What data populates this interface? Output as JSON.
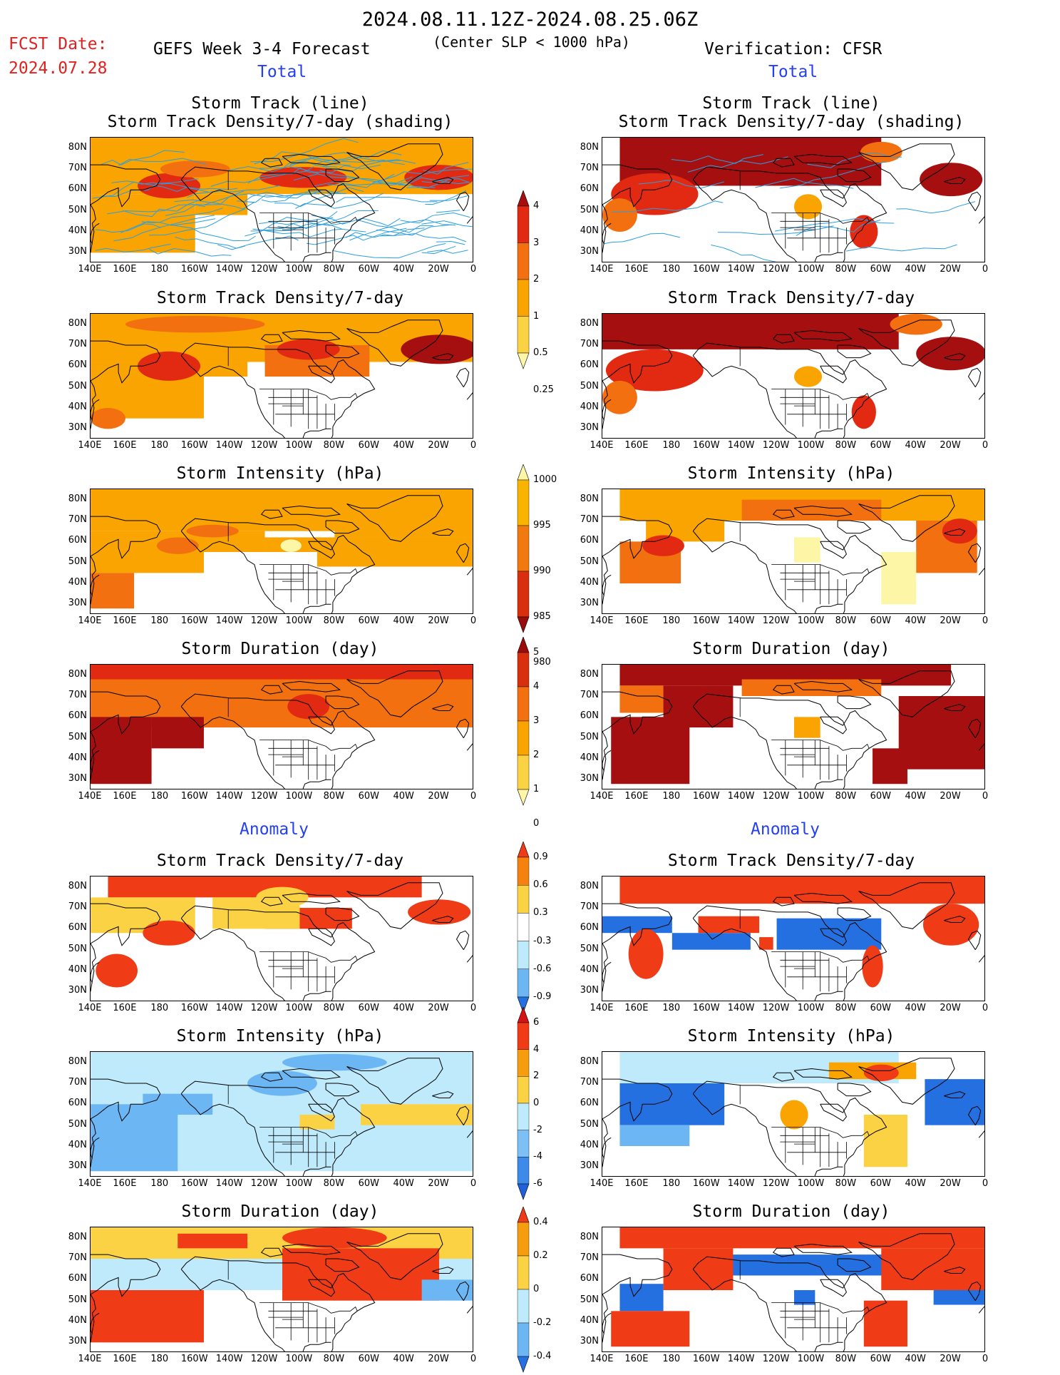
{
  "header": {
    "date_range": "2024.08.11.12Z-2024.08.25.06Z",
    "fcst_label": "FCST Date:",
    "fcst_date": "2024.07.28",
    "forecast_title": "GEFS Week 3-4 Forecast",
    "center_note": "(Center SLP < 1000 hPa)",
    "verification": "Verification: CFSR",
    "total_left": "Total",
    "total_right": "Total",
    "anomaly_left": "Anomaly",
    "anomaly_right": "Anomaly"
  },
  "panel_titles": {
    "track_line": "Storm Track (line)",
    "track_density_shading": "Storm Track Density/7-day (shading)",
    "track_density": "Storm Track Density/7-day",
    "intensity": "Storm Intensity (hPa)",
    "duration": "Storm Duration (day)"
  },
  "axes": {
    "lat_labels": [
      "80N",
      "70N",
      "60N",
      "50N",
      "40N",
      "30N"
    ],
    "lon_labels": [
      "140E",
      "160E",
      "180",
      "160W",
      "140W",
      "120W",
      "100W",
      "80W",
      "60W",
      "40W",
      "20W",
      "0"
    ]
  },
  "colorbars": {
    "density_total": {
      "labels": [
        "4",
        "3",
        "2",
        "1",
        "0.5",
        "0.25"
      ],
      "colors": [
        "#a50f0f",
        "#e22a12",
        "#f2700f",
        "#f9a400",
        "#fbd244",
        "#fdf6a6"
      ]
    },
    "intensity_total": {
      "labels": [
        "1000",
        "995",
        "990",
        "985",
        "980"
      ],
      "colors": [
        "#fdf6a6",
        "#f9b400",
        "#f07a10",
        "#d8300e",
        "#9a0c0c"
      ]
    },
    "duration_total": {
      "labels": [
        "5",
        "4",
        "3",
        "2",
        "1",
        "0"
      ],
      "colors": [
        "#9a0c0c",
        "#d8300e",
        "#f2700f",
        "#f9a400",
        "#fbd244",
        "#fdf6a6"
      ]
    },
    "density_anom": {
      "labels": [
        "0.9",
        "0.6",
        "0.3",
        "-0.3",
        "-0.6",
        "-0.9"
      ],
      "colors": [
        "#ef3b16",
        "#f5820f",
        "#fbd244",
        "#ffffff",
        "#bfeafb",
        "#6cb6f3",
        "#2570e0"
      ]
    },
    "intensity_anom": {
      "labels": [
        "6",
        "4",
        "2",
        "0",
        "-2",
        "-4",
        "-6"
      ],
      "colors": [
        "#d41414",
        "#ef3b16",
        "#f59c0f",
        "#fbd244",
        "#bfeafb",
        "#7cc0f5",
        "#3d8ae8",
        "#2060d8"
      ]
    },
    "duration_anom": {
      "labels": [
        "0.4",
        "0.2",
        "0",
        "-0.2",
        "-0.4"
      ],
      "colors": [
        "#ef3b16",
        "#f59c0f",
        "#fbd244",
        "#bfeafb",
        "#6cb6f3",
        "#2570e0"
      ]
    }
  }
}
